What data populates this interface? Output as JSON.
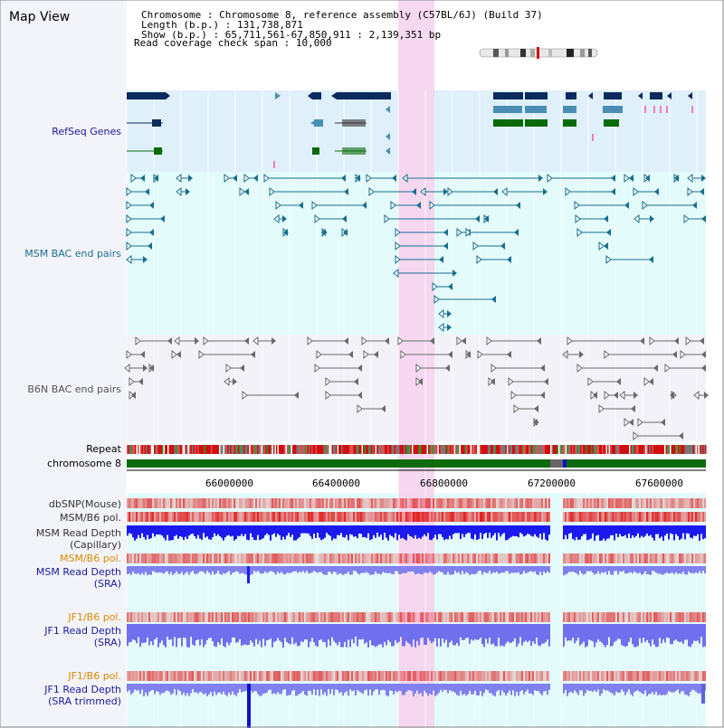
{
  "header": {
    "app_title": "Map View",
    "info": [
      {
        "key": "Chromosome    ",
        "value": "Chromosome 8, reference assembly (C57BL/6J) (Build 37)"
      },
      {
        "key": "Length (b.p.) ",
        "value": "131,738,871"
      },
      {
        "key": " Show (b.p.)  ",
        "value": "65,711,561-67,850,911 : 2,139,351 bp"
      },
      {
        "key": "Read coverage check span ",
        "value": "10,000"
      }
    ]
  },
  "tracks": {
    "refseq": {
      "label": "RefSeq Genes"
    },
    "msm_bac": {
      "label": "MSM BAC end pairs"
    },
    "b6n_bac": {
      "label": "B6N BAC end pairs"
    },
    "repeat": {
      "label": "Repeat"
    },
    "chromosome": {
      "label": "chromosome 8"
    },
    "dbsnp": {
      "label": "dbSNP(Mouse)"
    },
    "msm_b6_pol_1": {
      "label": "MSM/B6 pol."
    },
    "msm_depth_cap": {
      "label": "MSM Read Depth",
      "label2": "(Capillary)"
    },
    "msm_b6_pol_2": {
      "label": "MSM/B6 pol."
    },
    "msm_depth_sra": {
      "label": "MSM Read Depth",
      "label2": "(SRA)"
    },
    "jf1_b6_pol_1": {
      "label": "JF1/B6 pol."
    },
    "jf1_depth_sra": {
      "label": "JF1 Read Depth",
      "label2": "(SRA)"
    },
    "jf1_b6_pol_2": {
      "label": "JF1/B6 pol."
    },
    "jf1_depth_trim": {
      "label": "JF1 Read Depth",
      "label2": "(SRA trimmed)"
    }
  },
  "axis": {
    "ticks": [
      "66000000",
      "66400000",
      "66800000",
      "67200000",
      "67600000"
    ]
  },
  "colors": {
    "refseq_bg": "#dff0fb",
    "msm_bg": "#e4fbfb",
    "b6n_bg": "#f2f2f8",
    "lower_bg": "#e4fbfb",
    "highlight": "#f6d6ef",
    "gene_dark": "#0b2a5e",
    "gene_mid": "#4a8fb3",
    "gene_green": "#0a6a0a",
    "bac_teal": "#1a6e8e",
    "bac_gray": "#6a6a6a",
    "chrom_green": "#0d6a0d",
    "label_blue": "#1a1a9a",
    "label_teal": "#1a6e8e",
    "label_orange": "#d98a00"
  }
}
